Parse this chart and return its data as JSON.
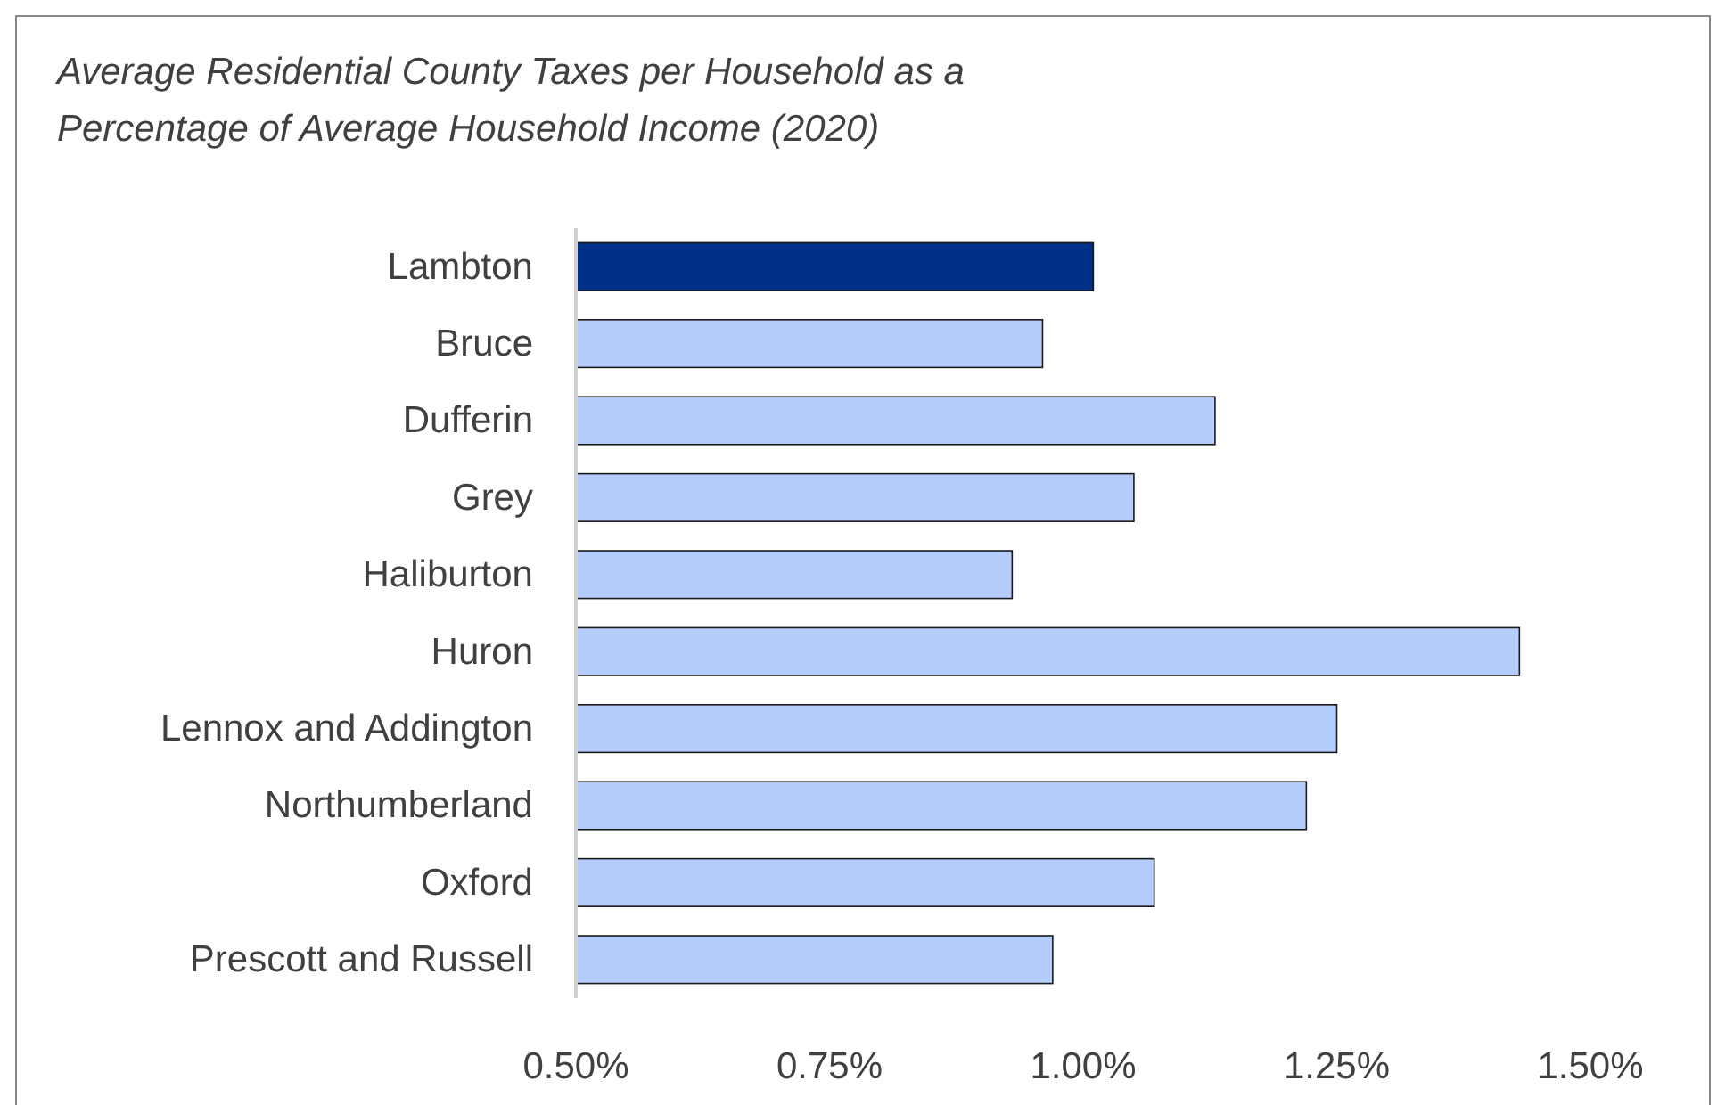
{
  "chart_data": {
    "type": "bar",
    "orientation": "horizontal",
    "title": "Average Residential County Taxes per Household as a Percentage of Average Household Income (2020)",
    "categories": [
      "Lambton",
      "Bruce",
      "Dufferin",
      "Grey",
      "Haliburton",
      "Huron",
      "Lennox and Addington",
      "Northumberland",
      "Oxford",
      "Prescott and Russell"
    ],
    "values": [
      1.01,
      0.96,
      1.13,
      1.05,
      0.93,
      1.43,
      1.25,
      1.22,
      1.07,
      0.97
    ],
    "colors": [
      "#003087",
      "#b4cdfc",
      "#b4cdfc",
      "#b4cdfc",
      "#b4cdfc",
      "#b4cdfc",
      "#b4cdfc",
      "#b4cdfc",
      "#b4cdfc",
      "#b4cdfc"
    ],
    "xlim": [
      0.5,
      1.5
    ],
    "xticks": [
      {
        "value": 0.5,
        "label": "0.50%"
      },
      {
        "value": 0.75,
        "label": "0.75%"
      },
      {
        "value": 1.0,
        "label": "1.00%"
      },
      {
        "value": 1.25,
        "label": "1.25%"
      },
      {
        "value": 1.5,
        "label": "1.50%"
      }
    ],
    "grid": false
  }
}
